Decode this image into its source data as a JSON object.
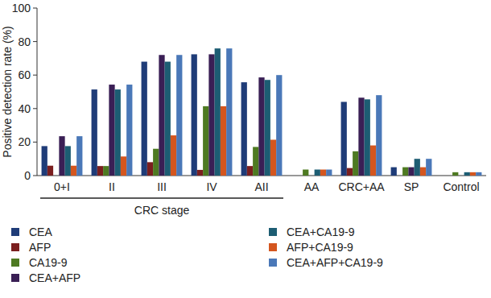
{
  "chart_data": {
    "type": "bar",
    "y_label": "Positive detection rate (%)",
    "categories": [
      "0+I",
      "II",
      "III",
      "IV",
      "AII",
      "AA",
      "CRC+AA",
      "SP",
      "Control"
    ],
    "series": [
      {
        "name": "CEA",
        "color": "#1f3c78",
        "values": [
          17.6,
          51.4,
          68,
          72.4,
          55.7,
          0,
          44,
          5,
          0
        ]
      },
      {
        "name": "AFP",
        "color": "#7b1f1f",
        "values": [
          5.9,
          5.7,
          8,
          3.4,
          5.7,
          0,
          4.5,
          0,
          0
        ]
      },
      {
        "name": "CA19-9",
        "color": "#4e7a22",
        "values": [
          0,
          5.7,
          16,
          41.4,
          17.1,
          3.6,
          14.5,
          5,
          2
        ]
      },
      {
        "name": "CEA+AFP",
        "color": "#3a1f55",
        "values": [
          23.5,
          54.3,
          72,
          72.4,
          58.6,
          0,
          46.5,
          5,
          0
        ]
      },
      {
        "name": "CEA+CA19-9",
        "color": "#1d5d73",
        "values": [
          17.6,
          51.4,
          68,
          75.9,
          57.1,
          3.6,
          45.5,
          10,
          2
        ]
      },
      {
        "name": "AFP+CA19-9",
        "color": "#d4561f",
        "values": [
          5.9,
          11.4,
          24,
          41.4,
          21.4,
          3.6,
          18,
          5,
          2
        ]
      },
      {
        "name": "CEA+AFP+CA19-9",
        "color": "#4a78b8",
        "values": [
          23.5,
          54.3,
          72,
          75.9,
          60,
          3.6,
          48,
          10,
          2
        ]
      }
    ],
    "annotations": [
      {
        "text": "CRC stage",
        "from": "0+I",
        "to": "AII"
      }
    ],
    "ylim": [
      0,
      100
    ],
    "yticks": [
      0,
      20,
      40,
      60,
      80,
      100
    ],
    "grid": false,
    "legend": "bottom"
  }
}
